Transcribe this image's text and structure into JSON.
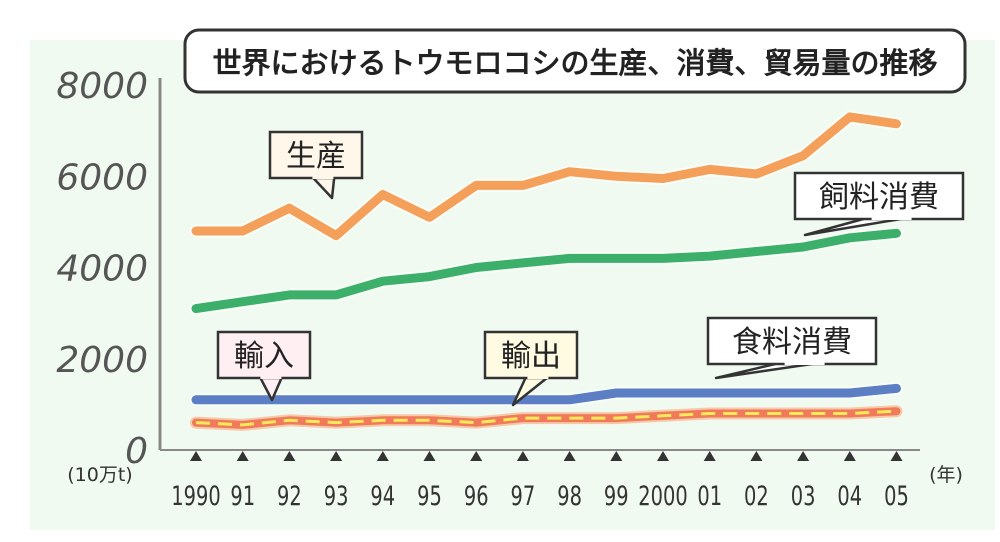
{
  "chart_data": {
    "type": "line",
    "title": "世界におけるトウモロコシの生産、消費、貿易量の推移",
    "ylabel": "(10万t)",
    "xlabel": "(年)",
    "ylim": [
      0,
      8000
    ],
    "yticks": [
      "0",
      "2000",
      "4000",
      "6000",
      "8000"
    ],
    "categories": [
      "1990",
      "91",
      "92",
      "93",
      "94",
      "95",
      "96",
      "97",
      "98",
      "99",
      "2000",
      "01",
      "02",
      "03",
      "04",
      "05"
    ],
    "series": [
      {
        "name": "生産",
        "color": "#f4a05a",
        "values": [
          4800,
          4800,
          5300,
          4700,
          5600,
          5100,
          5800,
          5800,
          6100,
          6000,
          5950,
          6150,
          6050,
          6450,
          7300,
          7150
        ]
      },
      {
        "name": "飼料消費",
        "color": "#3cb06a",
        "values": [
          3100,
          3250,
          3400,
          3400,
          3700,
          3800,
          4000,
          4100,
          4200,
          4200,
          4200,
          4250,
          4350,
          4450,
          4650,
          4750
        ]
      },
      {
        "name": "食料消費",
        "color": "#5b7ec4",
        "values": [
          1100,
          1100,
          1100,
          1100,
          1100,
          1100,
          1100,
          1100,
          1100,
          1250,
          1250,
          1250,
          1250,
          1250,
          1250,
          1350
        ]
      },
      {
        "name": "輸入",
        "color": "#ee5555",
        "values": [
          600,
          550,
          650,
          600,
          650,
          650,
          600,
          700,
          700,
          700,
          750,
          800,
          800,
          800,
          800,
          850
        ]
      },
      {
        "name": "輸出",
        "color": "#ee5555",
        "values": [
          600,
          550,
          650,
          600,
          650,
          650,
          600,
          700,
          700,
          700,
          750,
          800,
          800,
          800,
          800,
          850
        ]
      }
    ],
    "callouts": [
      "生産",
      "飼料消費",
      "食料消費",
      "輸入",
      "輸出"
    ]
  }
}
